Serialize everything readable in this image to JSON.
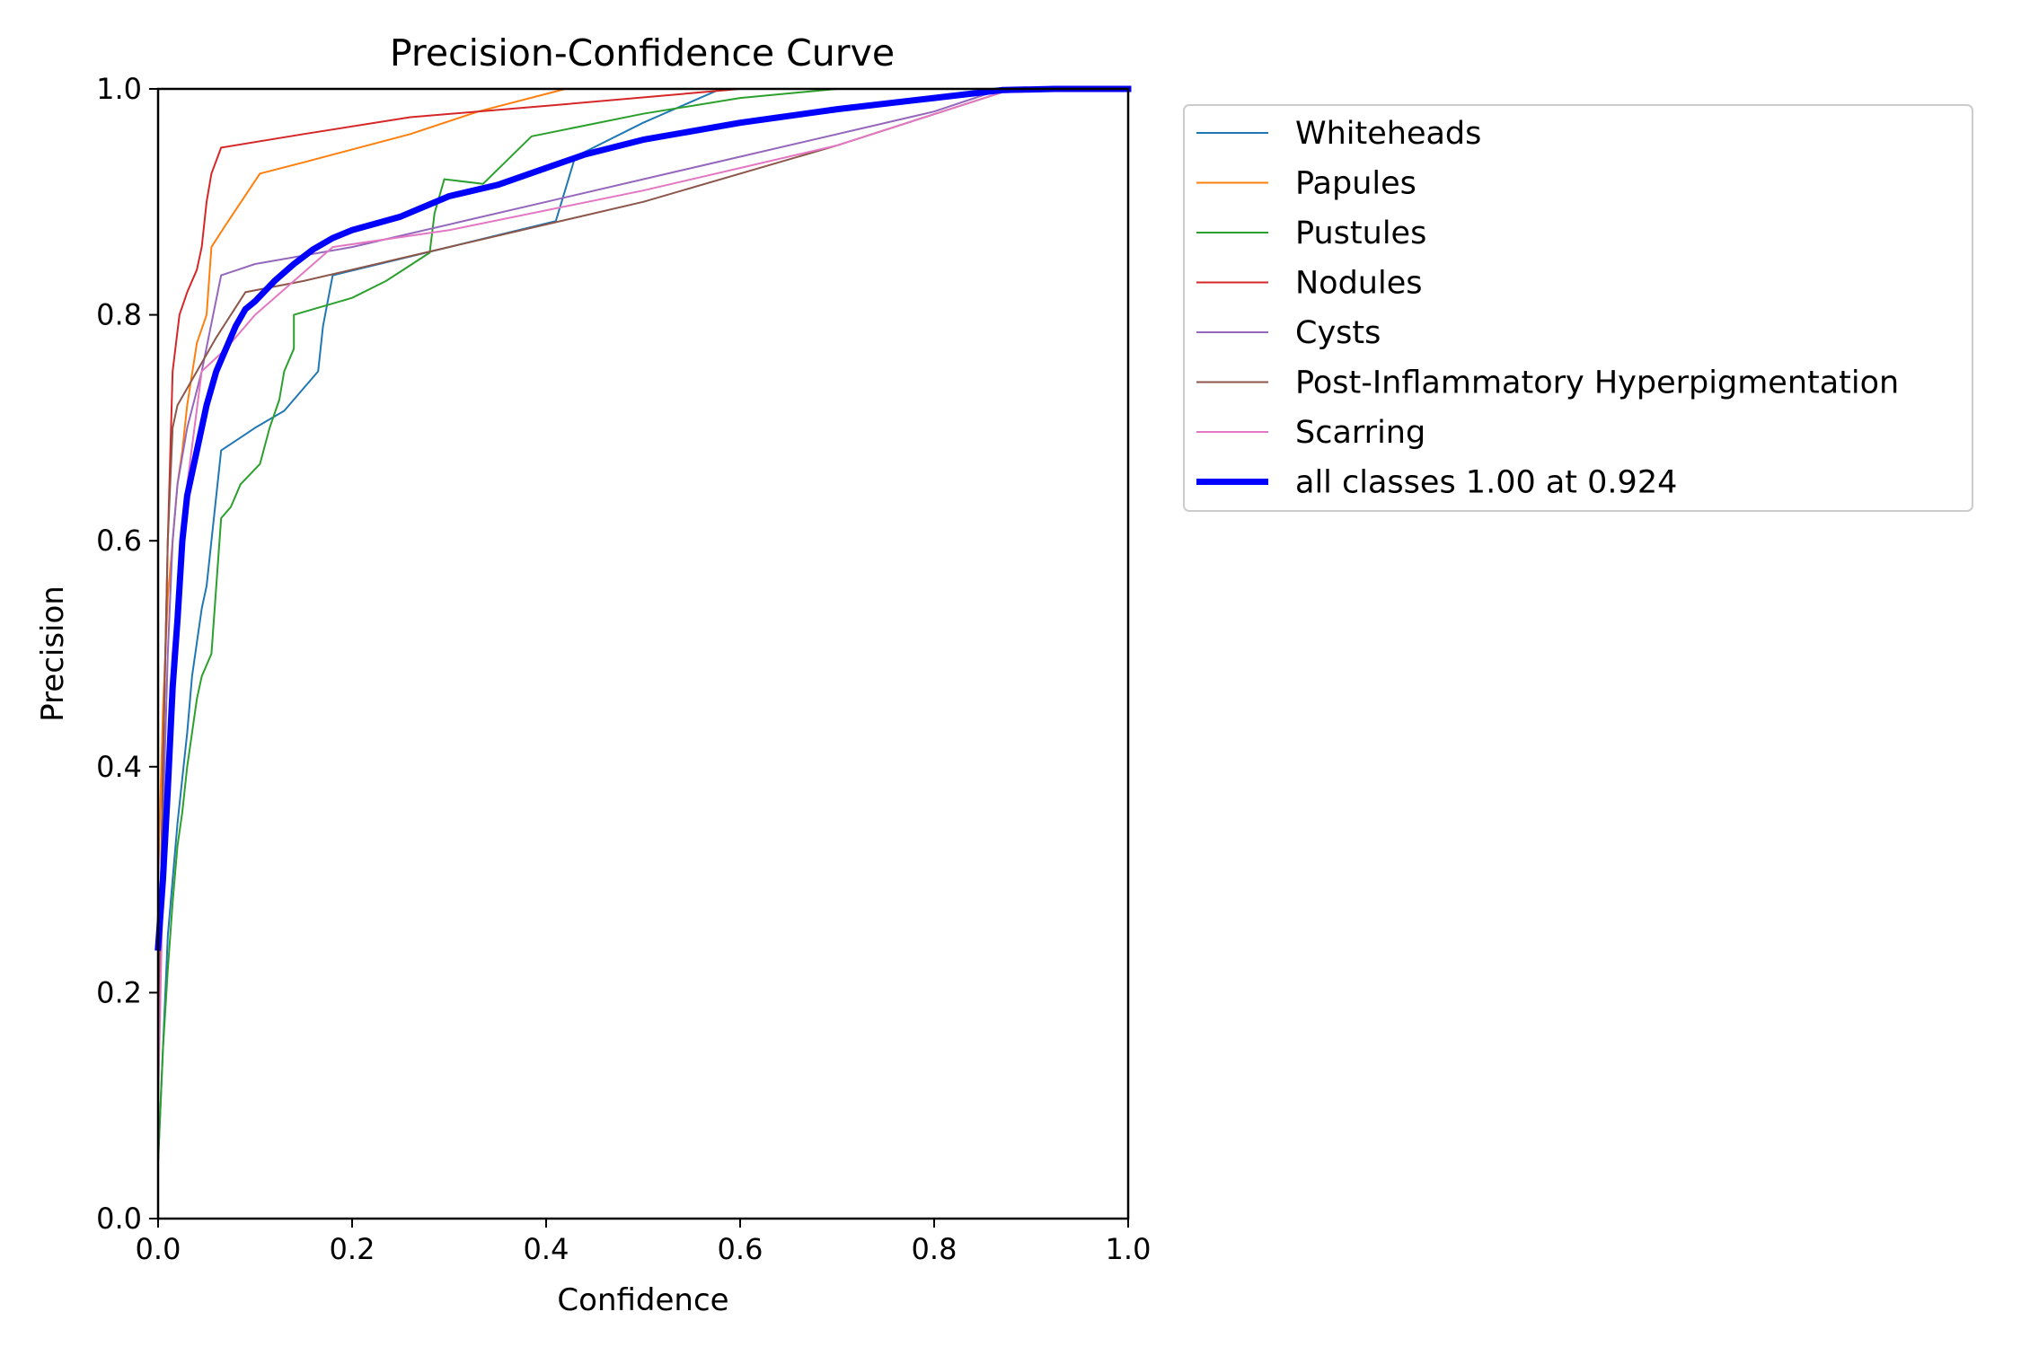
{
  "chart_data": {
    "type": "line",
    "title": "Precision-Confidence Curve",
    "xlabel": "Confidence",
    "ylabel": "Precision",
    "xlim": [
      0,
      1
    ],
    "ylim": [
      0,
      1
    ],
    "xticks": [
      "0.0",
      "0.2",
      "0.4",
      "0.6",
      "0.8",
      "1.0"
    ],
    "yticks": [
      "0.0",
      "0.2",
      "0.4",
      "0.6",
      "0.8",
      "1.0"
    ],
    "grid": false,
    "legend_position": "outside-right-top",
    "series": [
      {
        "name": "Whiteheads",
        "color": "#1f77b4",
        "width": 2,
        "points": [
          [
            0.0,
            0.05
          ],
          [
            0.005,
            0.15
          ],
          [
            0.01,
            0.25
          ],
          [
            0.015,
            0.3
          ],
          [
            0.02,
            0.35
          ],
          [
            0.025,
            0.39
          ],
          [
            0.03,
            0.43
          ],
          [
            0.035,
            0.48
          ],
          [
            0.04,
            0.51
          ],
          [
            0.045,
            0.54
          ],
          [
            0.05,
            0.56
          ],
          [
            0.055,
            0.6
          ],
          [
            0.06,
            0.64
          ],
          [
            0.065,
            0.68
          ],
          [
            0.1,
            0.7
          ],
          [
            0.13,
            0.715
          ],
          [
            0.165,
            0.75
          ],
          [
            0.17,
            0.79
          ],
          [
            0.18,
            0.835
          ],
          [
            0.3,
            0.86
          ],
          [
            0.41,
            0.883
          ],
          [
            0.43,
            0.94
          ],
          [
            0.5,
            0.97
          ],
          [
            0.58,
            1.0
          ],
          [
            1.0,
            1.0
          ]
        ]
      },
      {
        "name": "Papules",
        "color": "#ff7f0e",
        "width": 2,
        "points": [
          [
            0.0,
            0.3
          ],
          [
            0.005,
            0.45
          ],
          [
            0.01,
            0.55
          ],
          [
            0.015,
            0.6
          ],
          [
            0.02,
            0.65
          ],
          [
            0.025,
            0.68
          ],
          [
            0.03,
            0.72
          ],
          [
            0.04,
            0.775
          ],
          [
            0.05,
            0.8
          ],
          [
            0.055,
            0.86
          ],
          [
            0.07,
            0.88
          ],
          [
            0.105,
            0.925
          ],
          [
            0.15,
            0.935
          ],
          [
            0.26,
            0.96
          ],
          [
            0.33,
            0.98
          ],
          [
            0.42,
            1.0
          ],
          [
            1.0,
            1.0
          ]
        ]
      },
      {
        "name": "Pustules",
        "color": "#2ca02c",
        "width": 2,
        "points": [
          [
            0.0,
            0.05
          ],
          [
            0.005,
            0.15
          ],
          [
            0.01,
            0.22
          ],
          [
            0.015,
            0.28
          ],
          [
            0.02,
            0.33
          ],
          [
            0.025,
            0.36
          ],
          [
            0.03,
            0.4
          ],
          [
            0.035,
            0.43
          ],
          [
            0.04,
            0.46
          ],
          [
            0.045,
            0.48
          ],
          [
            0.05,
            0.49
          ],
          [
            0.055,
            0.5
          ],
          [
            0.06,
            0.56
          ],
          [
            0.065,
            0.62
          ],
          [
            0.075,
            0.63
          ],
          [
            0.085,
            0.65
          ],
          [
            0.105,
            0.668
          ],
          [
            0.115,
            0.7
          ],
          [
            0.125,
            0.725
          ],
          [
            0.13,
            0.75
          ],
          [
            0.14,
            0.77
          ],
          [
            0.14,
            0.8
          ],
          [
            0.2,
            0.815
          ],
          [
            0.235,
            0.83
          ],
          [
            0.28,
            0.855
          ],
          [
            0.285,
            0.89
          ],
          [
            0.295,
            0.92
          ],
          [
            0.335,
            0.916
          ],
          [
            0.385,
            0.958
          ],
          [
            0.5,
            0.978
          ],
          [
            0.6,
            0.992
          ],
          [
            0.7,
            1.0
          ],
          [
            1.0,
            1.0
          ]
        ]
      },
      {
        "name": "Nodules",
        "color": "#d62728",
        "width": 2,
        "points": [
          [
            0.0,
            0.15
          ],
          [
            0.005,
            0.4
          ],
          [
            0.01,
            0.6
          ],
          [
            0.015,
            0.75
          ],
          [
            0.022,
            0.8
          ],
          [
            0.03,
            0.82
          ],
          [
            0.04,
            0.84
          ],
          [
            0.045,
            0.86
          ],
          [
            0.05,
            0.9
          ],
          [
            0.055,
            0.925
          ],
          [
            0.065,
            0.948
          ],
          [
            0.15,
            0.96
          ],
          [
            0.26,
            0.975
          ],
          [
            0.4,
            0.985
          ],
          [
            0.6,
            1.0
          ],
          [
            1.0,
            1.0
          ]
        ]
      },
      {
        "name": "Cysts",
        "color": "#9467bd",
        "width": 2,
        "points": [
          [
            0.0,
            0.2
          ],
          [
            0.005,
            0.35
          ],
          [
            0.01,
            0.5
          ],
          [
            0.015,
            0.6
          ],
          [
            0.02,
            0.65
          ],
          [
            0.03,
            0.7
          ],
          [
            0.045,
            0.75
          ],
          [
            0.065,
            0.835
          ],
          [
            0.1,
            0.845
          ],
          [
            0.2,
            0.86
          ],
          [
            0.4,
            0.9
          ],
          [
            0.6,
            0.94
          ],
          [
            0.8,
            0.98
          ],
          [
            0.87,
            1.0
          ],
          [
            1.0,
            1.0
          ]
        ]
      },
      {
        "name": "Post-Inflammatory Hyperpigmentation",
        "color": "#8c564b",
        "width": 2,
        "points": [
          [
            0.0,
            0.15
          ],
          [
            0.005,
            0.4
          ],
          [
            0.01,
            0.6
          ],
          [
            0.015,
            0.7
          ],
          [
            0.02,
            0.72
          ],
          [
            0.04,
            0.75
          ],
          [
            0.06,
            0.78
          ],
          [
            0.09,
            0.82
          ],
          [
            0.15,
            0.83
          ],
          [
            0.3,
            0.86
          ],
          [
            0.5,
            0.9
          ],
          [
            0.7,
            0.95
          ],
          [
            0.87,
            0.997
          ],
          [
            1.0,
            1.0
          ]
        ]
      },
      {
        "name": "Scarring",
        "color": "#e377c2",
        "width": 2,
        "points": [
          [
            0.0,
            0.1
          ],
          [
            0.005,
            0.3
          ],
          [
            0.01,
            0.4
          ],
          [
            0.015,
            0.5
          ],
          [
            0.02,
            0.55
          ],
          [
            0.03,
            0.65
          ],
          [
            0.045,
            0.75
          ],
          [
            0.07,
            0.77
          ],
          [
            0.1,
            0.8
          ],
          [
            0.18,
            0.86
          ],
          [
            0.3,
            0.875
          ],
          [
            0.5,
            0.91
          ],
          [
            0.7,
            0.95
          ],
          [
            0.87,
            0.997
          ],
          [
            1.0,
            1.0
          ]
        ]
      },
      {
        "name": "all classes 1.00 at 0.924",
        "color": "#0000ff",
        "width": 7,
        "points": [
          [
            0.0,
            0.24
          ],
          [
            0.005,
            0.3
          ],
          [
            0.01,
            0.38
          ],
          [
            0.015,
            0.47
          ],
          [
            0.02,
            0.53
          ],
          [
            0.025,
            0.6
          ],
          [
            0.03,
            0.64
          ],
          [
            0.04,
            0.68
          ],
          [
            0.05,
            0.72
          ],
          [
            0.06,
            0.75
          ],
          [
            0.07,
            0.77
          ],
          [
            0.08,
            0.79
          ],
          [
            0.09,
            0.805
          ],
          [
            0.1,
            0.812
          ],
          [
            0.12,
            0.83
          ],
          [
            0.14,
            0.845
          ],
          [
            0.16,
            0.858
          ],
          [
            0.18,
            0.868
          ],
          [
            0.2,
            0.875
          ],
          [
            0.25,
            0.887
          ],
          [
            0.3,
            0.905
          ],
          [
            0.35,
            0.915
          ],
          [
            0.4,
            0.93
          ],
          [
            0.44,
            0.942
          ],
          [
            0.5,
            0.955
          ],
          [
            0.6,
            0.97
          ],
          [
            0.7,
            0.982
          ],
          [
            0.8,
            0.992
          ],
          [
            0.87,
            0.999
          ],
          [
            0.924,
            1.0
          ],
          [
            1.0,
            1.0
          ]
        ]
      }
    ]
  }
}
